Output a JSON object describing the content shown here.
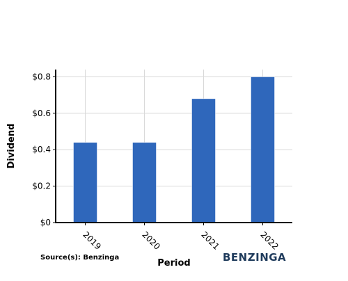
{
  "chart_data": {
    "type": "bar",
    "title": "",
    "xlabel": "Period",
    "ylabel": "Dividend",
    "categories": [
      "2019",
      "2020",
      "2021",
      "2022"
    ],
    "series": [
      {
        "values": [
          0.44,
          0.44,
          0.68,
          0.8
        ]
      }
    ],
    "ylim": [
      0,
      0.84
    ],
    "yticks": [
      0,
      0.2,
      0.4,
      0.6,
      0.8
    ],
    "ytick_labels": [
      "$0",
      "$0.2",
      "$0.4",
      "$0.6",
      "$0.8"
    ],
    "grid": true,
    "bar_color": "#2f67bb",
    "grid_color": "#d9d9d9",
    "axis_color": "#000000"
  },
  "footer": {
    "source": "Source(s): Benzinga",
    "brand": "BENZINGA",
    "brand_color": "#1f3b5c"
  }
}
